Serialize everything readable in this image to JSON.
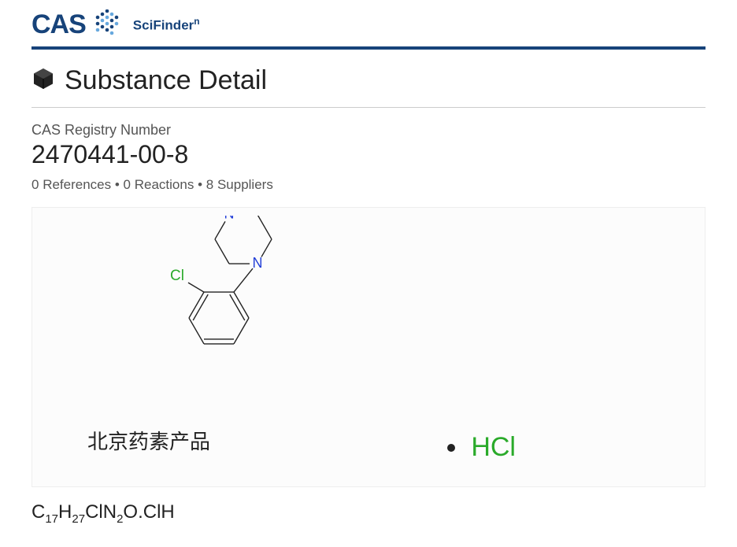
{
  "brand": {
    "logo_text": "CAS",
    "logo_color": "#17437a",
    "sub_text": "SciFinder",
    "sub_sup": "n",
    "border_color": "#17437a",
    "dots_colors": [
      "#17437a",
      "#17437a",
      "#67a8de",
      "#17437a",
      "#67a8de",
      "#17437a",
      "#67a8de",
      "#17437a",
      "#17437a",
      "#67a8de",
      "#67a8de",
      "#17437a",
      "#17437a",
      "#67a8de",
      "#17437a",
      "#67a8de"
    ]
  },
  "page_title": "Substance Detail",
  "registry": {
    "label": "CAS Registry Number",
    "number": "2470441-00-8"
  },
  "stats": {
    "references": 0,
    "reactions": 0,
    "suppliers": 8,
    "separator": " • "
  },
  "structure": {
    "atom_colors": {
      "C": "#222222",
      "N": "#2440d8",
      "O": "#d01010",
      "Cl": "#2aaa2a",
      "bond": "#222222"
    },
    "line_width": 1.4,
    "hcl_text": "HCl",
    "hcl_color": "#2aaa2a",
    "watermark": "北京药素产品",
    "panel_bg": "#fcfcfc"
  },
  "formula": {
    "parts": [
      {
        "t": "C"
      },
      {
        "sub": "17"
      },
      {
        "t": "H"
      },
      {
        "sub": "27"
      },
      {
        "t": "ClN"
      },
      {
        "sub": "2"
      },
      {
        "t": "O.ClH"
      }
    ]
  }
}
